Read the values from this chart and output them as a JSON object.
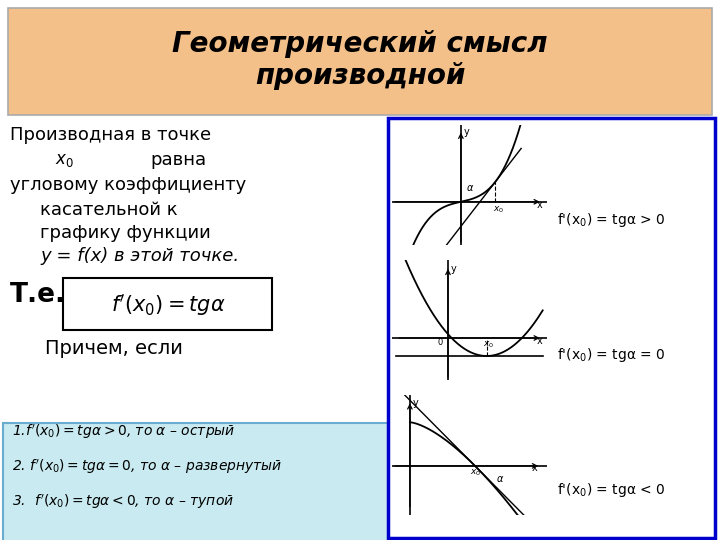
{
  "title": "Геометрический смысл\nпроизводной",
  "title_bg": "#F4C08A",
  "title_fontsize": 20,
  "bg_color": "#FFFFFF",
  "right_panel_border": "#0000CC",
  "right_labels": [
    "f'(x$_0$) = tgα > 0",
    "f'(x$_0$) = tgα = 0",
    "f'(x$_0$) = tgα < 0"
  ],
  "bottom_box_bg": "#C8EAF0",
  "formula_bg": "#FFFFFF"
}
